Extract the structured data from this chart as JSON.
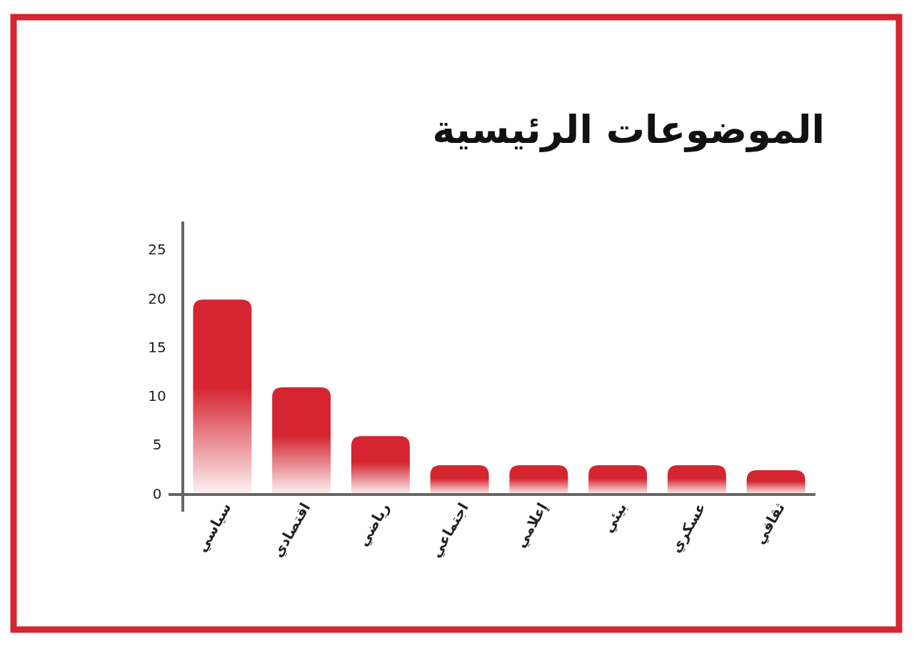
{
  "chart_data": {
    "type": "bar",
    "title": "الموضوعات الرئيسية",
    "categories": [
      "سياسي",
      "اقتصادي",
      "رياضي",
      "اجتماعي",
      "إعلامي",
      "بيئي",
      "عسكري",
      "ثقافي"
    ],
    "values": [
      20,
      11,
      6,
      3,
      3,
      3,
      3,
      2.5
    ],
    "color": "#d42530",
    "ylim": [
      0,
      28
    ],
    "yticks": [
      0,
      5,
      10,
      15,
      20,
      25
    ],
    "grid": false
  }
}
